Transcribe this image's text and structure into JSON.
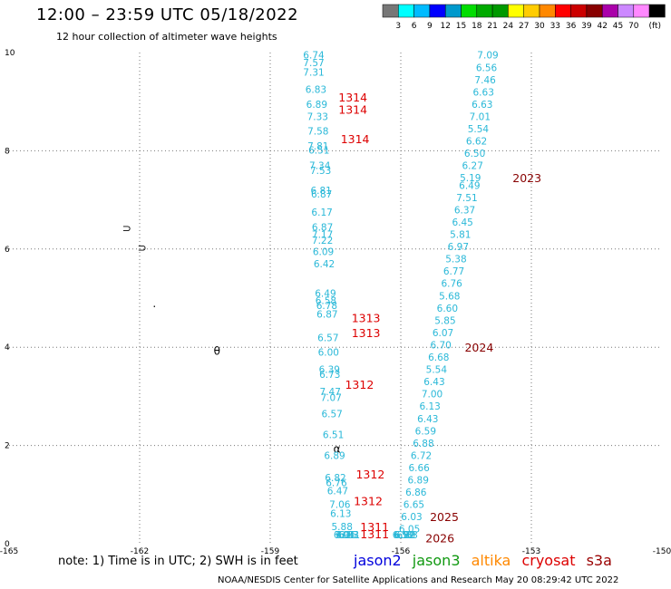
{
  "header": {
    "title": "12:00 – 23:59 UTC 05/18/2022",
    "subtitle": "12 hour collection of altimeter wave heights"
  },
  "footer": {
    "note": "note: 1) Time is in UTC; 2) SWH is in feet",
    "credit": "NOAA/NESDIS Center for Satellite Applications and Research    May 20 08:29:42 UTC 2022"
  },
  "satellites": [
    {
      "name": "jason2",
      "color": "#0000dd"
    },
    {
      "name": "jason3",
      "color": "#119911"
    },
    {
      "name": "altika",
      "color": "#ff8800"
    },
    {
      "name": "cryosat",
      "color": "#dd0000"
    },
    {
      "name": "s3a",
      "color": "#990000"
    }
  ],
  "chart_data": {
    "type": "scatter",
    "title": "12:00 – 23:59 UTC 05/18/2022",
    "subtitle": "12 hour collection of altimeter wave heights",
    "xlim": [
      -165,
      -150
    ],
    "ylim": [
      0,
      10
    ],
    "x_ticks": [
      "-165",
      "-162",
      "-159",
      "-156",
      "-153",
      "-150"
    ],
    "y_ticks": [
      "0",
      "2",
      "4",
      "6",
      "8",
      "10"
    ],
    "grid": "dotted",
    "color_scale": {
      "unit": "(ft)",
      "labels": [
        "3",
        "6",
        "9",
        "12",
        "15",
        "18",
        "21",
        "24",
        "27",
        "30",
        "33",
        "36",
        "39",
        "42",
        "45",
        "70"
      ],
      "colors": [
        "#777777",
        "#00ffff",
        "#00bbff",
        "#0000ff",
        "#0099cc",
        "#00dd00",
        "#00aa00",
        "#009900",
        "#ffff00",
        "#ffcc00",
        "#ff8800",
        "#ff0000",
        "#cc0000",
        "#880000",
        "#aa00aa",
        "#cc88ff",
        "#ff88ff",
        "#000000"
      ]
    },
    "wave_color": "#2ab8d8",
    "time_color": "#dd0000",
    "time_color_s3a": "#880000",
    "tracks": [
      {
        "name": "track-a",
        "points": [
          {
            "x": -158.0,
            "y": 9.95,
            "v": "6.74"
          },
          {
            "x": -158.0,
            "y": 9.8,
            "v": "7.57"
          },
          {
            "x": -158.0,
            "y": 9.6,
            "v": "7.31"
          },
          {
            "x": -157.95,
            "y": 9.25,
            "v": "6.83"
          },
          {
            "x": -157.93,
            "y": 8.95,
            "v": "6.89"
          },
          {
            "x": -157.91,
            "y": 8.7,
            "v": "7.33"
          },
          {
            "x": -157.9,
            "y": 8.4,
            "v": "7.58"
          },
          {
            "x": -157.9,
            "y": 8.1,
            "v": "7.81"
          },
          {
            "x": -157.88,
            "y": 8.02,
            "v": "6.51"
          },
          {
            "x": -157.86,
            "y": 7.7,
            "v": "7.34"
          },
          {
            "x": -157.84,
            "y": 7.6,
            "v": "7.53"
          },
          {
            "x": -157.83,
            "y": 7.2,
            "v": "6.81"
          },
          {
            "x": -157.82,
            "y": 7.12,
            "v": "6.87"
          },
          {
            "x": -157.81,
            "y": 6.75,
            "v": "6.17"
          },
          {
            "x": -157.8,
            "y": 6.45,
            "v": "6.87"
          },
          {
            "x": -157.8,
            "y": 6.3,
            "v": "7.17"
          },
          {
            "x": -157.8,
            "y": 6.18,
            "v": "7.22"
          },
          {
            "x": -157.78,
            "y": 5.95,
            "v": "6.09"
          },
          {
            "x": -157.76,
            "y": 5.7,
            "v": "6.42"
          },
          {
            "x": -157.73,
            "y": 5.1,
            "v": "6.49"
          },
          {
            "x": -157.72,
            "y": 4.95,
            "v": "6.58"
          },
          {
            "x": -157.7,
            "y": 4.85,
            "v": "6.78"
          },
          {
            "x": -157.69,
            "y": 4.68,
            "v": "6.87"
          },
          {
            "x": -157.67,
            "y": 4.2,
            "v": "6.57"
          },
          {
            "x": -157.66,
            "y": 3.9,
            "v": "6.00"
          },
          {
            "x": -157.64,
            "y": 3.55,
            "v": "6.39"
          },
          {
            "x": -157.63,
            "y": 3.45,
            "v": "6.73"
          },
          {
            "x": -157.62,
            "y": 3.1,
            "v": "7.47"
          },
          {
            "x": -157.6,
            "y": 2.98,
            "v": "7.07"
          },
          {
            "x": -157.58,
            "y": 2.65,
            "v": "6.57"
          },
          {
            "x": -157.55,
            "y": 2.22,
            "v": "6.51"
          },
          {
            "x": -157.52,
            "y": 1.8,
            "v": "6.89"
          },
          {
            "x": -157.5,
            "y": 1.35,
            "v": "6.82"
          },
          {
            "x": -157.48,
            "y": 1.25,
            "v": "6.76"
          },
          {
            "x": -157.45,
            "y": 1.08,
            "v": "6.47"
          },
          {
            "x": -157.4,
            "y": 0.8,
            "v": "7.06"
          },
          {
            "x": -157.38,
            "y": 0.62,
            "v": "6.13"
          },
          {
            "x": -157.35,
            "y": 0.35,
            "v": "5.88"
          },
          {
            "x": -157.3,
            "y": -0.1,
            "v": "6.94"
          },
          {
            "x": -157.28,
            "y": -0.2,
            "v": "7.01"
          },
          {
            "x": -157.25,
            "y": -0.45,
            "v": "6.25"
          },
          {
            "x": -157.2,
            "y": -0.85,
            "v": "6.33"
          },
          {
            "x": -157.18,
            "y": -0.95,
            "v": "6.81"
          }
        ]
      },
      {
        "name": "track-b",
        "points": [
          {
            "x": -154.0,
            "y": 9.95,
            "v": "7.09"
          },
          {
            "x": -154.03,
            "y": 9.7,
            "v": "6.56"
          },
          {
            "x": -154.06,
            "y": 9.45,
            "v": "7.46"
          },
          {
            "x": -154.1,
            "y": 9.2,
            "v": "6.63"
          },
          {
            "x": -154.13,
            "y": 8.95,
            "v": "6.63"
          },
          {
            "x": -154.18,
            "y": 8.7,
            "v": "7.01"
          },
          {
            "x": -154.22,
            "y": 8.45,
            "v": "5.54"
          },
          {
            "x": -154.26,
            "y": 8.2,
            "v": "6.62"
          },
          {
            "x": -154.3,
            "y": 7.95,
            "v": "6.50"
          },
          {
            "x": -154.35,
            "y": 7.7,
            "v": "6.27"
          },
          {
            "x": -154.4,
            "y": 7.45,
            "v": "5.19"
          },
          {
            "x": -154.42,
            "y": 7.3,
            "v": "6.49"
          },
          {
            "x": -154.48,
            "y": 7.05,
            "v": "7.51"
          },
          {
            "x": -154.53,
            "y": 6.8,
            "v": "6.37"
          },
          {
            "x": -154.58,
            "y": 6.55,
            "v": "6.45"
          },
          {
            "x": -154.63,
            "y": 6.3,
            "v": "5.81"
          },
          {
            "x": -154.68,
            "y": 6.05,
            "v": "6.97"
          },
          {
            "x": -154.73,
            "y": 5.8,
            "v": "5.38"
          },
          {
            "x": -154.78,
            "y": 5.55,
            "v": "6.77"
          },
          {
            "x": -154.83,
            "y": 5.3,
            "v": "6.76"
          },
          {
            "x": -154.88,
            "y": 5.05,
            "v": "5.68"
          },
          {
            "x": -154.93,
            "y": 4.8,
            "v": "6.60"
          },
          {
            "x": -154.98,
            "y": 4.55,
            "v": "5.85"
          },
          {
            "x": -155.03,
            "y": 4.3,
            "v": "6.07"
          },
          {
            "x": -155.08,
            "y": 4.05,
            "v": "6.70"
          },
          {
            "x": -155.13,
            "y": 3.8,
            "v": "6.68"
          },
          {
            "x": -155.18,
            "y": 3.55,
            "v": "5.54"
          },
          {
            "x": -155.23,
            "y": 3.3,
            "v": "6.43"
          },
          {
            "x": -155.28,
            "y": 3.05,
            "v": "7.00"
          },
          {
            "x": -155.33,
            "y": 2.8,
            "v": "6.13"
          },
          {
            "x": -155.38,
            "y": 2.55,
            "v": "6.43"
          },
          {
            "x": -155.43,
            "y": 2.3,
            "v": "6.59"
          },
          {
            "x": -155.48,
            "y": 2.05,
            "v": "6.88"
          },
          {
            "x": -155.53,
            "y": 1.8,
            "v": "6.72"
          },
          {
            "x": -155.58,
            "y": 1.55,
            "v": "6.66"
          },
          {
            "x": -155.6,
            "y": 1.3,
            "v": "6.89"
          },
          {
            "x": -155.65,
            "y": 1.05,
            "v": "6.86"
          },
          {
            "x": -155.7,
            "y": 0.8,
            "v": "6.65"
          },
          {
            "x": -155.75,
            "y": 0.55,
            "v": "6.03"
          },
          {
            "x": -155.8,
            "y": 0.3,
            "v": "6.05"
          },
          {
            "x": -155.85,
            "y": 0.05,
            "v": "6.83"
          },
          {
            "x": -155.9,
            "y": -0.15,
            "v": "6.89"
          },
          {
            "x": -155.92,
            "y": -0.35,
            "v": "6.92"
          },
          {
            "x": -155.95,
            "y": -0.5,
            "v": "6.50"
          }
        ]
      }
    ],
    "time_labels": [
      {
        "x": -157.1,
        "y": 9.1,
        "v": "1314",
        "sat": "cryosat"
      },
      {
        "x": -157.1,
        "y": 8.85,
        "v": "1314",
        "sat": "cryosat"
      },
      {
        "x": -157.05,
        "y": 8.25,
        "v": "1314",
        "sat": "cryosat"
      },
      {
        "x": -156.8,
        "y": 4.6,
        "v": "1313",
        "sat": "cryosat"
      },
      {
        "x": -156.8,
        "y": 4.3,
        "v": "1313",
        "sat": "cryosat"
      },
      {
        "x": -156.95,
        "y": 3.25,
        "v": "1312",
        "sat": "cryosat"
      },
      {
        "x": -156.7,
        "y": 1.42,
        "v": "1312",
        "sat": "cryosat"
      },
      {
        "x": -156.75,
        "y": 0.88,
        "v": "1312",
        "sat": "cryosat"
      },
      {
        "x": -156.6,
        "y": 0.35,
        "v": "1311",
        "sat": "cryosat"
      },
      {
        "x": -156.6,
        "y": 0.2,
        "v": "1311",
        "sat": "cryosat"
      },
      {
        "x": -153.1,
        "y": 7.45,
        "v": "2023",
        "sat": "s3a"
      },
      {
        "x": -154.2,
        "y": 4.0,
        "v": "2024",
        "sat": "s3a"
      },
      {
        "x": -155.0,
        "y": 0.55,
        "v": "2025",
        "sat": "s3a"
      },
      {
        "x": -155.1,
        "y": 0.12,
        "v": "2026",
        "sat": "s3a"
      }
    ],
    "land_marks": [
      {
        "x": -162.4,
        "y": 6.35,
        "glyph": "⊃"
      },
      {
        "x": -162.05,
        "y": 5.95,
        "glyph": "⊃"
      },
      {
        "x": -161.7,
        "y": 4.75,
        "glyph": "·"
      },
      {
        "x": -160.3,
        "y": 3.85,
        "glyph": "θ"
      },
      {
        "x": -157.55,
        "y": 1.85,
        "glyph": "α"
      }
    ]
  }
}
